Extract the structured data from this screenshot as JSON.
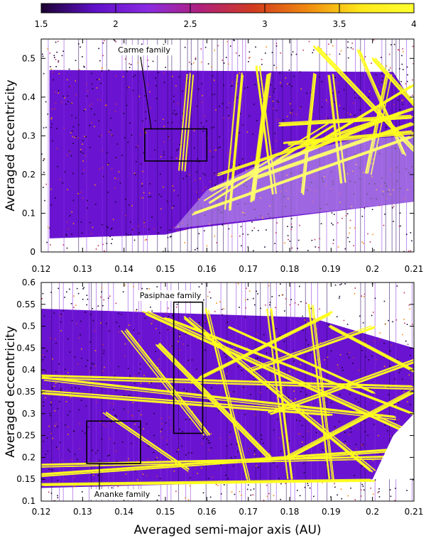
{
  "colorbar": {
    "ticks": [
      "1.5",
      "2",
      "2.5",
      "3",
      "3.5",
      "4"
    ],
    "min": 1.5,
    "max": 4,
    "colors": [
      "#1a0230",
      "#5f10c8",
      "#8a2be2",
      "#b0207a",
      "#d23b1e",
      "#f08a10",
      "#ffe81a",
      "#ffff30"
    ]
  },
  "chart_data": [
    {
      "type": "heatmap",
      "panel": "top",
      "xlabel": "",
      "ylabel": "Averaged eccentricity",
      "xlim": [
        0.12,
        0.21
      ],
      "ylim": [
        0,
        0.55
      ],
      "xticks": [
        "0.12",
        "0.13",
        "0.14",
        "0.15",
        "0.16",
        "0.17",
        "0.18",
        "0.19",
        "0.2",
        "0.21"
      ],
      "yticks": [
        "0",
        "0.1",
        "0.2",
        "0.3",
        "0.4",
        "0.5"
      ],
      "colorscale_range": [
        1.5,
        4
      ],
      "grid": false,
      "annotations": [
        {
          "text": "Carme family",
          "box": {
            "x": [
              0.145,
              0.16
            ],
            "y": [
              0.235,
              0.318
            ]
          }
        }
      ]
    },
    {
      "type": "heatmap",
      "panel": "bottom",
      "xlabel": "Averaged semi-major axis (AU)",
      "ylabel": "Averaged eccentricity",
      "xlim": [
        0.12,
        0.21
      ],
      "ylim": [
        0.1,
        0.6
      ],
      "xticks": [
        "0.12",
        "0.13",
        "0.14",
        "0.15",
        "0.16",
        "0.17",
        "0.18",
        "0.19",
        "0.2",
        "0.21"
      ],
      "yticks": [
        "0.1",
        "0.15",
        "0.2",
        "0.25",
        "0.3",
        "0.35",
        "0.4",
        "0.45",
        "0.5",
        "0.55",
        "0.6"
      ],
      "colorscale_range": [
        1.5,
        4
      ],
      "grid": false,
      "annotations": [
        {
          "text": "Pasiphae family",
          "box": {
            "x": [
              0.152,
              0.159
            ],
            "y": [
              0.255,
              0.555
            ]
          }
        },
        {
          "text": "Ananke family",
          "box": {
            "x": [
              0.131,
              0.144
            ],
            "y": [
              0.186,
              0.283
            ]
          }
        }
      ]
    }
  ]
}
